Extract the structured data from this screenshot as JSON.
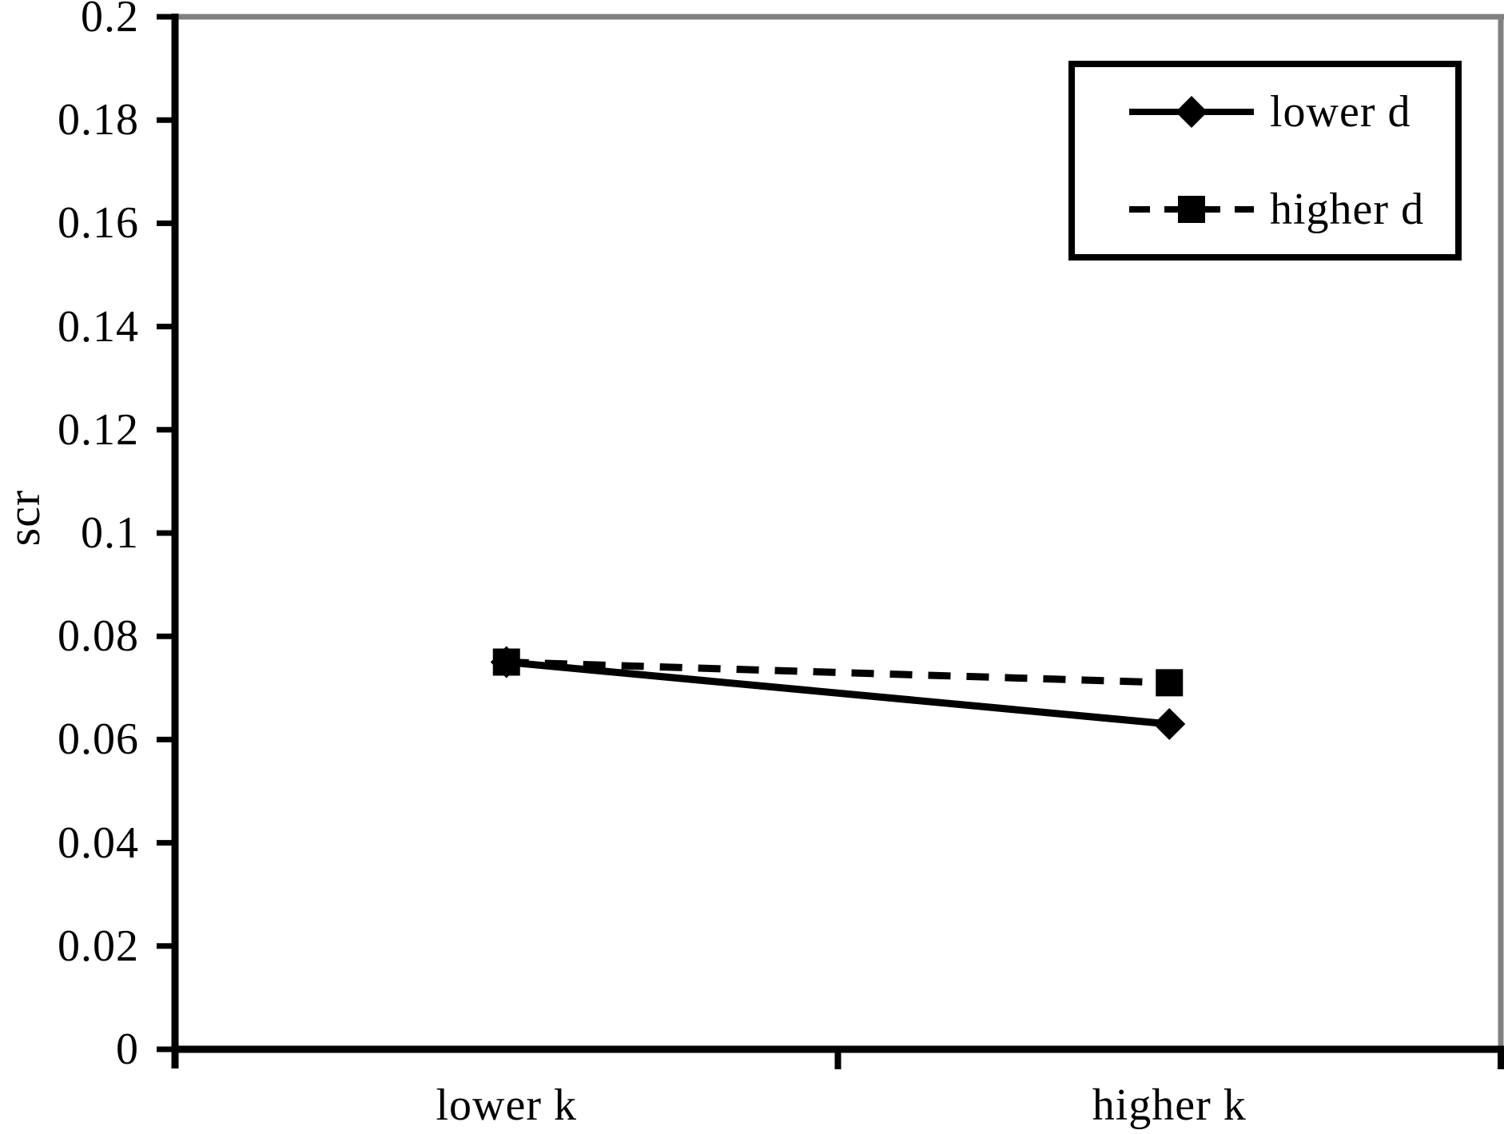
{
  "chart_data": {
    "type": "line",
    "title": "",
    "categories": [
      "lower k",
      "higher k"
    ],
    "series": [
      {
        "name": "lower d",
        "values": [
          0.075,
          0.063
        ],
        "line_style": "solid",
        "marker": "diamond"
      },
      {
        "name": "higher d",
        "values": [
          0.075,
          0.071
        ],
        "line_style": "dashed",
        "marker": "square"
      }
    ],
    "xlabel": "",
    "ylabel": "scr",
    "ylim": [
      0,
      0.2
    ],
    "yticks": [
      0,
      0.02,
      0.04,
      0.06,
      0.08,
      0.1,
      0.12,
      0.14,
      0.16,
      0.18,
      0.2
    ],
    "ytick_labels": [
      "0",
      "0.02",
      "0.04",
      "0.06",
      "0.08",
      "0.1",
      "0.12",
      "0.14",
      "0.16",
      "0.18",
      "0.2"
    ],
    "grid": false,
    "legend_position": "top-right",
    "colors": {
      "series_line": "#000000",
      "marker_fill": "#000000",
      "axis": "#000000",
      "plot_border_gray": "#808080",
      "text": "#000000",
      "background": "#ffffff",
      "legend_border": "#000000"
    }
  }
}
